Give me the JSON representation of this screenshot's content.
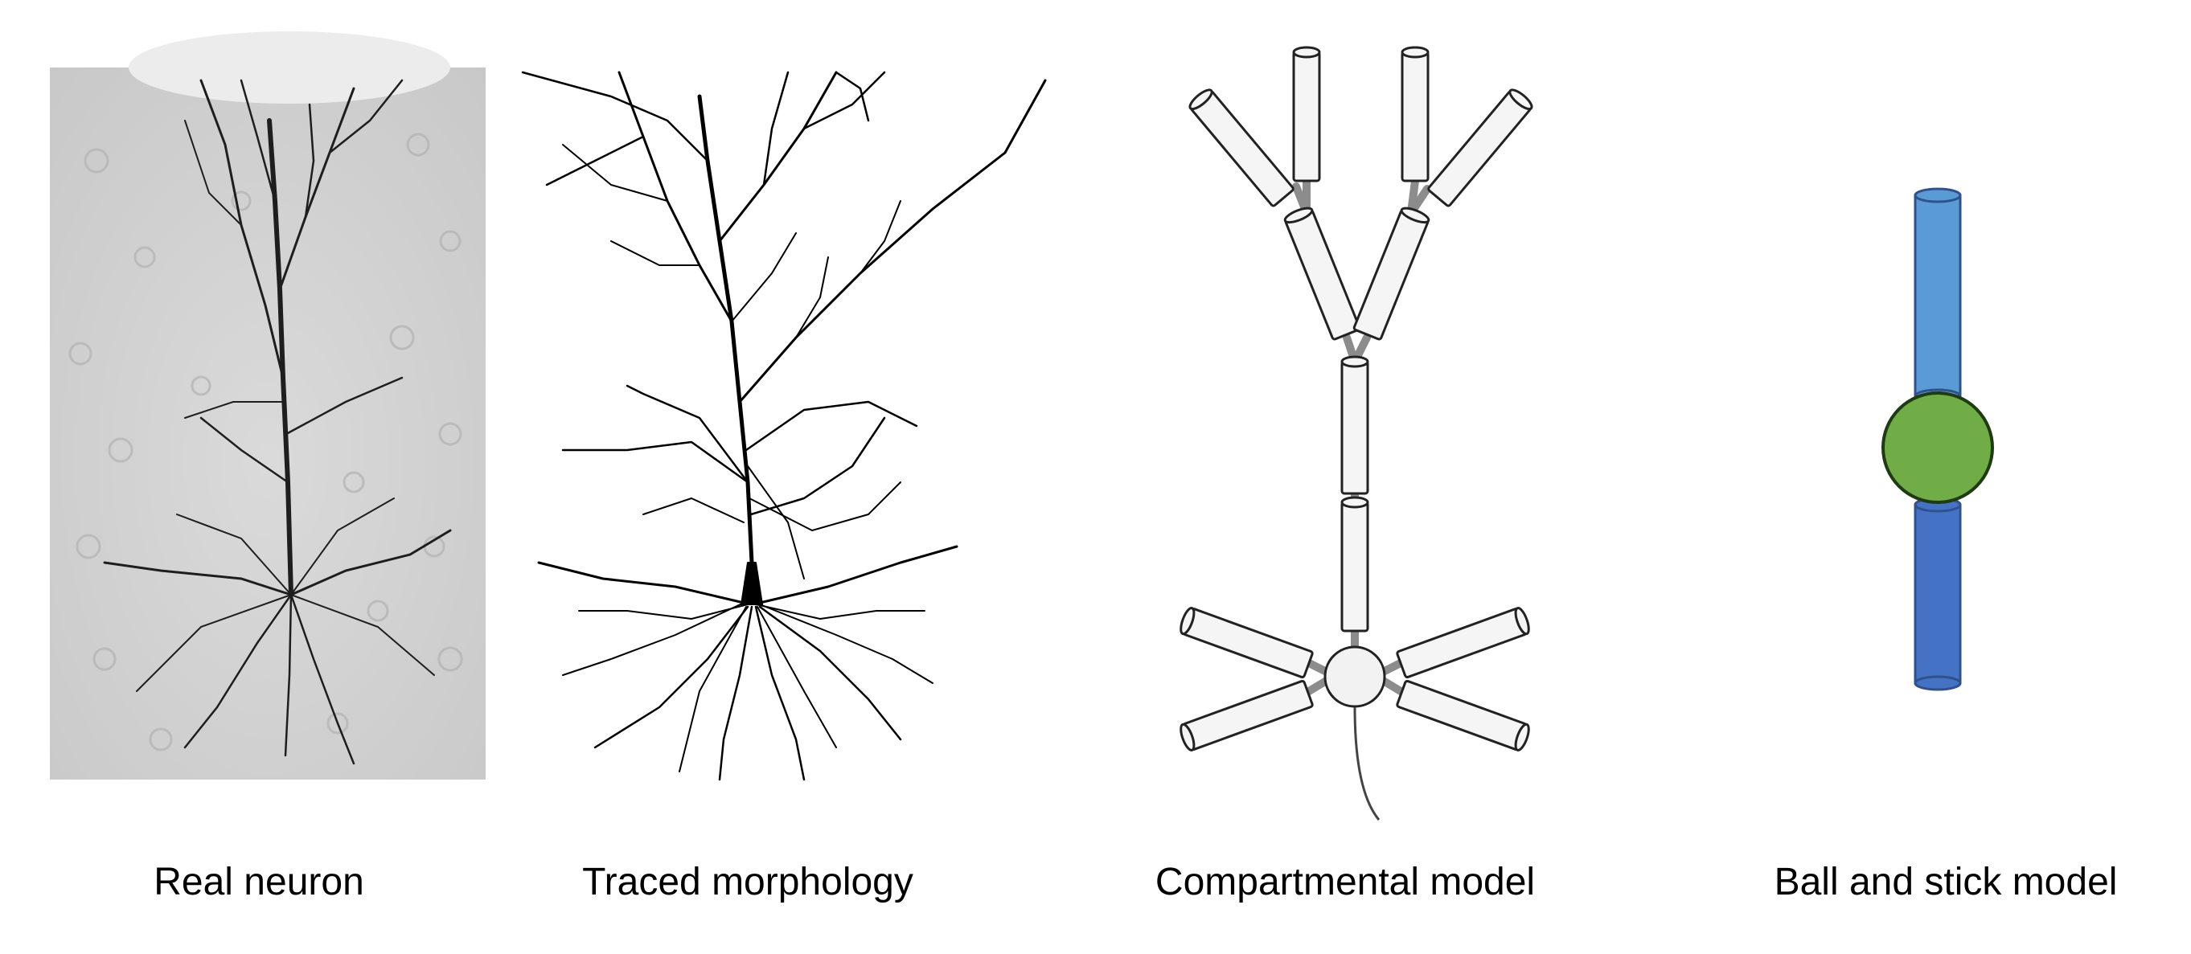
{
  "panels": [
    {
      "id": "real",
      "caption": "Real neuron"
    },
    {
      "id": "traced",
      "caption": "Traced morphology"
    },
    {
      "id": "compartmental",
      "caption": "Compartmental model"
    },
    {
      "id": "ballstick",
      "caption": "Ball and stick model"
    }
  ],
  "colors": {
    "micrograph_bg": "#d8d8d8",
    "stain": "#1e1e1e",
    "trace": "#000000",
    "compartment_fill": "#f5f5f5",
    "compartment_stroke": "#222222",
    "connector": "#8c8c8c",
    "stick_top": "#5b9bd5",
    "stick_bottom": "#4472c4",
    "stick_stroke": "#2f528f",
    "ball": "#70ad47",
    "ball_stroke": "#1f3b12"
  }
}
